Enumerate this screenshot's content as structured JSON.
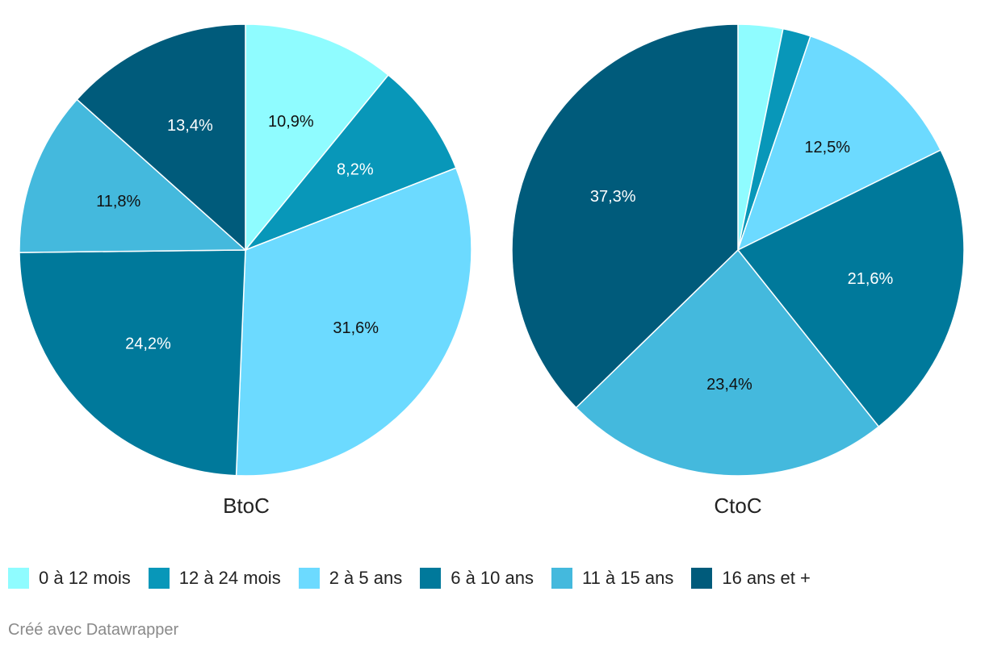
{
  "chart_data": [
    {
      "type": "pie",
      "title": "BtoC",
      "categories": [
        "0 à 12 mois",
        "12 à 24 mois",
        "2 à 5 ans",
        "6 à 10 ans",
        "11 à 15 ans",
        "16 ans et +"
      ],
      "values": [
        10.9,
        8.2,
        31.6,
        24.2,
        11.8,
        13.4
      ],
      "labels": [
        "10,9%",
        "8,2%",
        "31,6%",
        "24,2%",
        "11,8%",
        "13,4%"
      ]
    },
    {
      "type": "pie",
      "title": "CtoC",
      "categories": [
        "0 à 12 mois",
        "12 à 24 mois",
        "2 à 5 ans",
        "6 à 10 ans",
        "11 à 15 ans",
        "16 ans et +"
      ],
      "values": [
        3.2,
        2.0,
        12.5,
        21.6,
        23.4,
        37.3
      ],
      "labels": [
        "",
        "",
        "12,5%",
        "21,6%",
        "23,4%",
        "37,3%"
      ]
    }
  ],
  "legend": [
    {
      "label": "0 à 12 mois",
      "color": "#8ffcff"
    },
    {
      "label": "12 à 24 mois",
      "color": "#0897b9"
    },
    {
      "label": "2 à 5 ans",
      "color": "#6cdaff"
    },
    {
      "label": "6 à 10 ans",
      "color": "#00799b"
    },
    {
      "label": "11 à 15 ans",
      "color": "#44b9dd"
    },
    {
      "label": "16 ans et +",
      "color": "#005b7b"
    }
  ],
  "label_colors": [
    "#111111",
    "#ffffff",
    "#111111",
    "#ffffff",
    "#111111",
    "#ffffff"
  ],
  "credit": "Créé avec Datawrapper"
}
